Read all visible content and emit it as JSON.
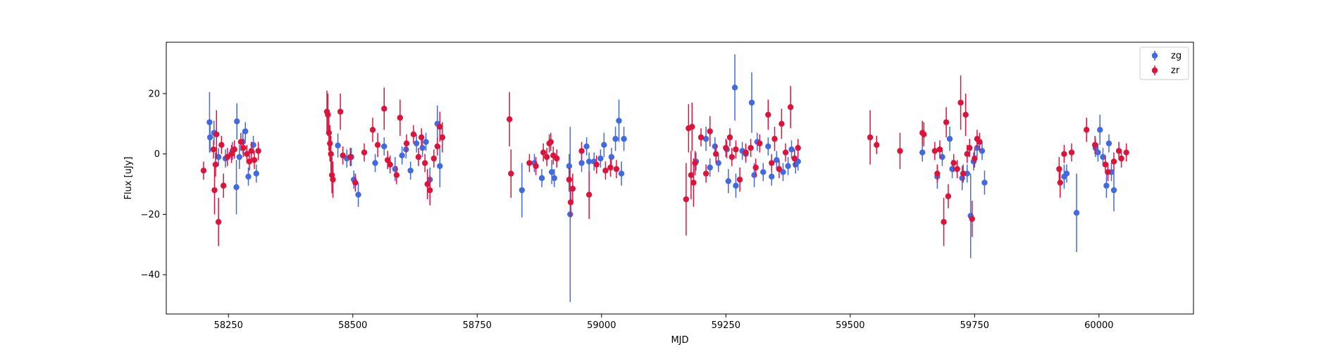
{
  "chart_data": {
    "type": "scatter",
    "title": "",
    "xlabel": "MJD",
    "ylabel": "Flux [uJy]",
    "xlim": [
      58125,
      60190
    ],
    "ylim": [
      -53,
      37
    ],
    "xticks": [
      58250,
      58500,
      58750,
      59000,
      59250,
      59500,
      59750,
      60000
    ],
    "yticks": [
      -40,
      -20,
      0,
      20
    ],
    "grid": false,
    "legend": {
      "placement": "top-right"
    },
    "series": [
      {
        "name": "zg",
        "color": "#4169e1",
        "points": [
          [
            58212,
            10.5,
            10
          ],
          [
            58213,
            5.5,
            5
          ],
          [
            58221,
            7.0,
            4
          ],
          [
            58230,
            -1.0,
            3
          ],
          [
            58244,
            -1.5,
            3
          ],
          [
            58258,
            1.0,
            3
          ],
          [
            58266,
            -11.0,
            9
          ],
          [
            58267,
            10.8,
            6
          ],
          [
            58272,
            -1.0,
            4
          ],
          [
            58279,
            4.0,
            4
          ],
          [
            58284,
            7.5,
            3
          ],
          [
            58290,
            -7.5,
            3
          ],
          [
            58300,
            3.0,
            3
          ],
          [
            58306,
            -6.5,
            3
          ],
          [
            58470,
            2.8,
            4
          ],
          [
            58488,
            -1.5,
            3
          ],
          [
            58497,
            -1.0,
            3
          ],
          [
            58502,
            -8.5,
            3
          ],
          [
            58511,
            -13.5,
            4
          ],
          [
            58545,
            -3.0,
            3
          ],
          [
            58563,
            2.5,
            3
          ],
          [
            58585,
            -5.0,
            4
          ],
          [
            58599,
            -0.5,
            3
          ],
          [
            58607,
            1.5,
            3
          ],
          [
            58616,
            -5.5,
            3
          ],
          [
            58628,
            3.5,
            3
          ],
          [
            58640,
            2.0,
            3
          ],
          [
            58647,
            4.0,
            3
          ],
          [
            58655,
            -8.5,
            4
          ],
          [
            58670,
            10.0,
            6
          ],
          [
            58675,
            -4.0,
            7
          ],
          [
            58840,
            -12.0,
            9
          ],
          [
            58865,
            -3.0,
            3
          ],
          [
            58880,
            -8.0,
            3
          ],
          [
            58900,
            -6.0,
            4
          ],
          [
            58905,
            -8.0,
            3
          ],
          [
            58935,
            -4.0,
            4
          ],
          [
            58937,
            -20.0,
            29
          ],
          [
            58960,
            -3.0,
            3
          ],
          [
            58970,
            2.5,
            3
          ],
          [
            58975,
            -2.5,
            3
          ],
          [
            58985,
            -2.5,
            3
          ],
          [
            58998,
            -1.5,
            3
          ],
          [
            59005,
            3.0,
            4
          ],
          [
            59020,
            -1.0,
            3
          ],
          [
            59028,
            5.0,
            4
          ],
          [
            59035,
            11.0,
            7
          ],
          [
            59040,
            -6.5,
            4
          ],
          [
            59045,
            5.0,
            4
          ],
          [
            59190,
            -2.5,
            3
          ],
          [
            59210,
            5.0,
            4
          ],
          [
            59218,
            -4.5,
            3
          ],
          [
            59228,
            2.5,
            3
          ],
          [
            59235,
            -3.0,
            3
          ],
          [
            59252,
            1.5,
            3
          ],
          [
            59255,
            -9.0,
            4
          ],
          [
            59268,
            22.0,
            11
          ],
          [
            59270,
            -10.5,
            4
          ],
          [
            59283,
            1.0,
            3
          ],
          [
            59290,
            0.0,
            3
          ],
          [
            59302,
            17.0,
            10
          ],
          [
            59307,
            -7.0,
            4
          ],
          [
            59313,
            4.0,
            3
          ],
          [
            59325,
            -6.0,
            3
          ],
          [
            59335,
            2.5,
            3
          ],
          [
            59342,
            -7.5,
            3
          ],
          [
            59352,
            -2.0,
            3
          ],
          [
            59365,
            -6.0,
            3
          ],
          [
            59375,
            -4.0,
            3
          ],
          [
            59382,
            1.5,
            3
          ],
          [
            59390,
            -3.5,
            3
          ],
          [
            59395,
            -2.5,
            3
          ],
          [
            59645,
            0.5,
            3
          ],
          [
            59675,
            -7.5,
            4
          ],
          [
            59685,
            -1.0,
            3
          ],
          [
            59700,
            5.0,
            4
          ],
          [
            59705,
            -5.0,
            3
          ],
          [
            59725,
            -8.0,
            4
          ],
          [
            59735,
            -6.5,
            3
          ],
          [
            59742,
            -20.5,
            14
          ],
          [
            59748,
            -2.5,
            3
          ],
          [
            59755,
            2.0,
            3
          ],
          [
            59765,
            1.0,
            3
          ],
          [
            59770,
            -9.5,
            4
          ],
          [
            59930,
            -7.5,
            4
          ],
          [
            59935,
            -6.5,
            3
          ],
          [
            59955,
            -19.5,
            13
          ],
          [
            59993,
            2.0,
            3
          ],
          [
            59998,
            0.5,
            3
          ],
          [
            60002,
            8.0,
            5
          ],
          [
            60008,
            -1.0,
            3
          ],
          [
            60015,
            -10.5,
            4
          ],
          [
            60020,
            3.5,
            3
          ],
          [
            60025,
            -6.0,
            3
          ],
          [
            60030,
            -12.0,
            7
          ]
        ]
      },
      {
        "name": "zr",
        "color": "#dc143c",
        "points": [
          [
            58200,
            -5.5,
            3
          ],
          [
            58220,
            1.5,
            3
          ],
          [
            58222,
            -12.0,
            8
          ],
          [
            58224,
            -3.5,
            4
          ],
          [
            58226,
            6.5,
            8
          ],
          [
            58230,
            -22.5,
            8
          ],
          [
            58236,
            3.0,
            3
          ],
          [
            58240,
            -10.5,
            4
          ],
          [
            58248,
            -1.0,
            3
          ],
          [
            58256,
            0.0,
            3
          ],
          [
            58262,
            1.5,
            3
          ],
          [
            58275,
            4.0,
            3
          ],
          [
            58280,
            2.0,
            3
          ],
          [
            58287,
            0.0,
            3
          ],
          [
            58292,
            -2.5,
            3
          ],
          [
            58296,
            1.0,
            3
          ],
          [
            58302,
            -2.0,
            3
          ],
          [
            58310,
            1.0,
            3
          ],
          [
            58448,
            14.0,
            7
          ],
          [
            58450,
            13.0,
            7
          ],
          [
            58452,
            7.0,
            6
          ],
          [
            58454,
            3.5,
            6
          ],
          [
            58456,
            0.0,
            6
          ],
          [
            58458,
            -7.0,
            6
          ],
          [
            58460,
            -8.5,
            6
          ],
          [
            58475,
            14.0,
            6
          ],
          [
            58480,
            -0.5,
            3
          ],
          [
            58495,
            -1.0,
            3
          ],
          [
            58505,
            -9.5,
            3
          ],
          [
            58523,
            0.5,
            3
          ],
          [
            58540,
            8.0,
            4
          ],
          [
            58550,
            3.0,
            4
          ],
          [
            58563,
            15.0,
            7
          ],
          [
            58570,
            -2.0,
            3
          ],
          [
            58575,
            -3.5,
            3
          ],
          [
            58588,
            -7.0,
            3
          ],
          [
            58595,
            12.0,
            6
          ],
          [
            58608,
            3.5,
            3
          ],
          [
            58622,
            6.5,
            3
          ],
          [
            58632,
            -1.0,
            3
          ],
          [
            58638,
            5.5,
            3
          ],
          [
            58645,
            -3.0,
            3
          ],
          [
            58650,
            -10.0,
            5
          ],
          [
            58655,
            -12.0,
            5
          ],
          [
            58663,
            -1.5,
            3
          ],
          [
            58670,
            2.5,
            3
          ],
          [
            58675,
            9.0,
            5
          ],
          [
            58680,
            5.5,
            5
          ],
          [
            58815,
            11.5,
            9
          ],
          [
            58818,
            -6.5,
            8
          ],
          [
            58855,
            -3.0,
            3
          ],
          [
            58868,
            -4.0,
            3
          ],
          [
            58883,
            0.5,
            3
          ],
          [
            58890,
            -1.0,
            3
          ],
          [
            58895,
            3.5,
            3
          ],
          [
            58898,
            4.0,
            3
          ],
          [
            58903,
            -0.5,
            3
          ],
          [
            58910,
            -1.5,
            3
          ],
          [
            58935,
            -8.5,
            4
          ],
          [
            58938,
            -16.0,
            5
          ],
          [
            58942,
            -11.5,
            5
          ],
          [
            58960,
            1.0,
            3
          ],
          [
            58975,
            -13.5,
            8
          ],
          [
            58990,
            -3.5,
            3
          ],
          [
            59008,
            -5.5,
            3
          ],
          [
            59018,
            -4.5,
            3
          ],
          [
            59030,
            -5.0,
            3
          ],
          [
            59170,
            -15.0,
            12
          ],
          [
            59175,
            8.5,
            8
          ],
          [
            59180,
            -7.0,
            8
          ],
          [
            59182,
            9.0,
            8
          ],
          [
            59185,
            -9.5,
            8
          ],
          [
            59188,
            -3.0,
            4
          ],
          [
            59200,
            5.5,
            3
          ],
          [
            59210,
            -6.5,
            3
          ],
          [
            59218,
            7.5,
            5
          ],
          [
            59230,
            0.0,
            3
          ],
          [
            59250,
            2.0,
            3
          ],
          [
            59258,
            5.5,
            3
          ],
          [
            59262,
            -1.0,
            3
          ],
          [
            59270,
            1.5,
            3
          ],
          [
            59278,
            -8.5,
            4
          ],
          [
            59290,
            0.5,
            3
          ],
          [
            59300,
            2.0,
            3
          ],
          [
            59310,
            -4.5,
            3
          ],
          [
            59318,
            3.5,
            3
          ],
          [
            59335,
            13.0,
            5
          ],
          [
            59342,
            -3.0,
            3
          ],
          [
            59348,
            5.0,
            4
          ],
          [
            59357,
            -5.0,
            3
          ],
          [
            59362,
            10.0,
            5
          ],
          [
            59370,
            0.5,
            3
          ],
          [
            59380,
            15.5,
            7
          ],
          [
            59388,
            -1.5,
            3
          ],
          [
            59395,
            2.0,
            3
          ],
          [
            59540,
            5.5,
            9
          ],
          [
            59553,
            3.0,
            3
          ],
          [
            59600,
            1.0,
            6
          ],
          [
            59645,
            7.0,
            4
          ],
          [
            59648,
            6.5,
            4
          ],
          [
            59670,
            1.0,
            3
          ],
          [
            59675,
            -6.5,
            3
          ],
          [
            59680,
            1.5,
            3
          ],
          [
            59688,
            -22.5,
            8
          ],
          [
            59693,
            10.5,
            5
          ],
          [
            59697,
            -14.0,
            4
          ],
          [
            59708,
            -3.0,
            3
          ],
          [
            59715,
            -5.0,
            3
          ],
          [
            59722,
            17.0,
            9
          ],
          [
            59727,
            -6.5,
            3
          ],
          [
            59732,
            13.0,
            7
          ],
          [
            59735,
            0.0,
            3
          ],
          [
            59740,
            2.0,
            3
          ],
          [
            59745,
            -21.5,
            6
          ],
          [
            59750,
            -1.5,
            3
          ],
          [
            59755,
            5.0,
            3
          ],
          [
            59760,
            4.0,
            3
          ],
          [
            59920,
            -5.0,
            4
          ],
          [
            59922,
            -9.5,
            5
          ],
          [
            59930,
            0.0,
            3
          ],
          [
            59945,
            0.5,
            3
          ],
          [
            59975,
            8.0,
            4
          ],
          [
            59992,
            3.0,
            3
          ],
          [
            60013,
            -3.5,
            3
          ],
          [
            60018,
            -6.0,
            3
          ],
          [
            60030,
            -2.5,
            3
          ],
          [
            60040,
            1.0,
            3
          ],
          [
            60045,
            -1.5,
            3
          ],
          [
            60055,
            0.5,
            3
          ]
        ]
      }
    ]
  }
}
